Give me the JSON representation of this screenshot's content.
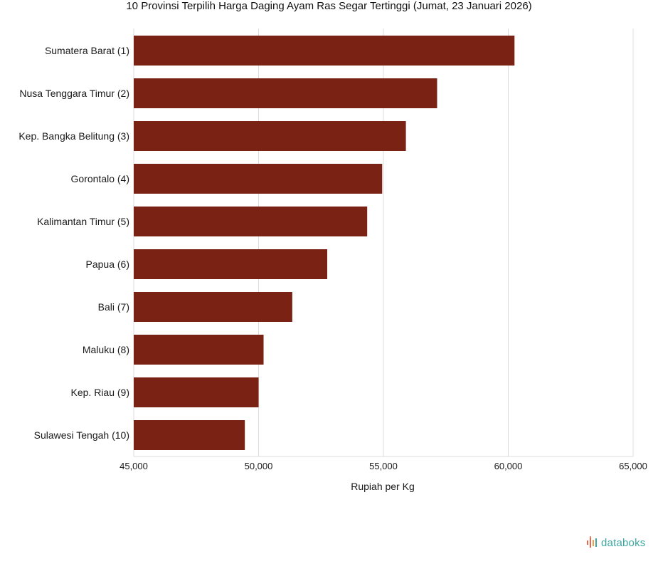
{
  "chart_data": {
    "type": "bar",
    "orientation": "horizontal",
    "title": "10 Provinsi Terpilih Harga Daging Ayam Ras Segar Tertinggi (Jumat, 23 Januari 2026)",
    "xlabel": "Rupiah per Kg",
    "ylabel": "",
    "categories": [
      "Sumatera Barat (1)",
      "Nusa Tenggara Timur (2)",
      "Kep. Bangka Belitung (3)",
      "Gorontalo (4)",
      "Kalimantan Timur (5)",
      "Papua (6)",
      "Bali (7)",
      "Maluku (8)",
      "Kep. Riau (9)",
      "Sulawesi Tengah (10)"
    ],
    "values": [
      60250,
      57150,
      55900,
      54950,
      54350,
      52750,
      51350,
      50200,
      50000,
      49450
    ],
    "xlim": [
      45000,
      65000
    ],
    "ticks": [
      45000,
      50000,
      55000,
      60000,
      65000
    ],
    "tick_labels": [
      "45,000",
      "50,000",
      "55,000",
      "60,000",
      "65,000"
    ],
    "grid": "vertical",
    "bar_color": "#7a2214",
    "grid_color": "#dcdcdc"
  },
  "brand": {
    "text": "databoks",
    "color": "#3aa7a0",
    "icon": "databoks-logo-icon"
  }
}
